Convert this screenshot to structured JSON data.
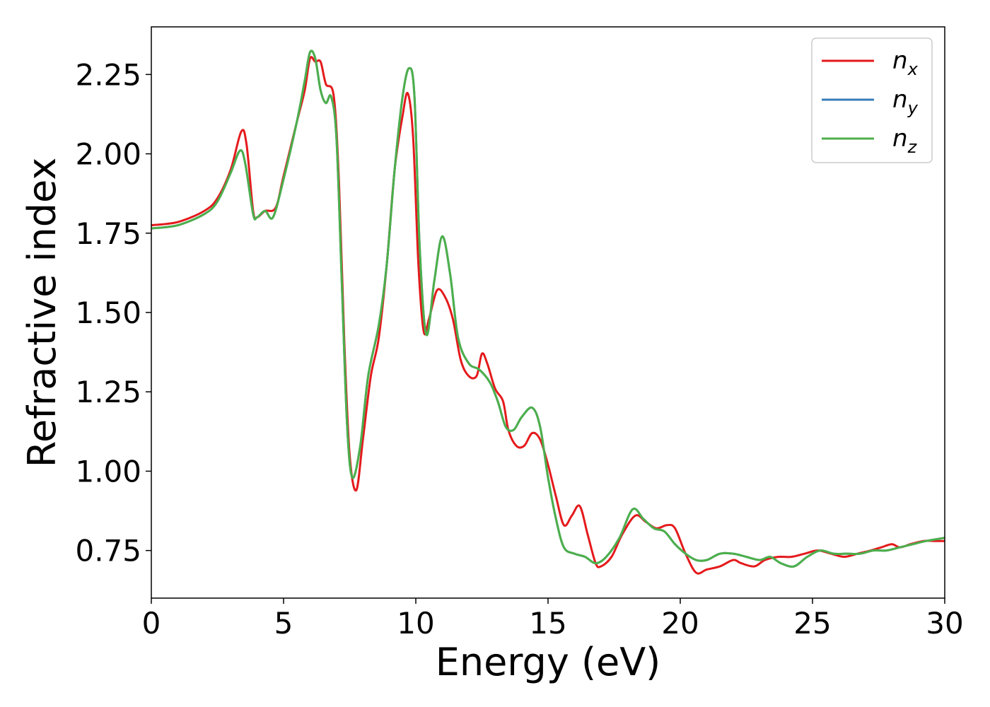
{
  "chart_data": {
    "type": "line",
    "xlabel": "Energy (eV)",
    "ylabel": "Refractive index",
    "xlim": [
      0,
      30
    ],
    "ylim": [
      0.6,
      2.4
    ],
    "xticks": [
      0,
      5,
      10,
      15,
      20,
      25,
      30
    ],
    "xtick_labels": [
      "0",
      "5",
      "10",
      "15",
      "20",
      "25",
      "30"
    ],
    "yticks": [
      0.75,
      1.0,
      1.25,
      1.5,
      1.75,
      2.0,
      2.25
    ],
    "ytick_labels": [
      "0.75",
      "1.00",
      "1.25",
      "1.50",
      "1.75",
      "2.00",
      "2.25"
    ],
    "grid": false,
    "legend_position": "top-right",
    "series": [
      {
        "name": "n_x",
        "label_base": "n",
        "label_sub": "x",
        "color": "#e41a1c",
        "points": [
          [
            0,
            1.775
          ],
          [
            1,
            1.785
          ],
          [
            2,
            1.82
          ],
          [
            2.5,
            1.86
          ],
          [
            3,
            1.95
          ],
          [
            3.4,
            2.07
          ],
          [
            3.6,
            2.03
          ],
          [
            3.85,
            1.82
          ],
          [
            4.0,
            1.8
          ],
          [
            4.3,
            1.82
          ],
          [
            4.7,
            1.83
          ],
          [
            5.0,
            1.93
          ],
          [
            5.5,
            2.1
          ],
          [
            5.8,
            2.2
          ],
          [
            6.0,
            2.3
          ],
          [
            6.2,
            2.29
          ],
          [
            6.4,
            2.29
          ],
          [
            6.6,
            2.22
          ],
          [
            6.9,
            2.18
          ],
          [
            7.1,
            1.9
          ],
          [
            7.3,
            1.4
          ],
          [
            7.5,
            1.05
          ],
          [
            7.75,
            0.94
          ],
          [
            8.0,
            1.1
          ],
          [
            8.3,
            1.3
          ],
          [
            8.6,
            1.42
          ],
          [
            8.9,
            1.65
          ],
          [
            9.2,
            1.95
          ],
          [
            9.5,
            2.12
          ],
          [
            9.7,
            2.19
          ],
          [
            9.9,
            2.05
          ],
          [
            10.1,
            1.65
          ],
          [
            10.3,
            1.44
          ],
          [
            10.5,
            1.48
          ],
          [
            10.8,
            1.57
          ],
          [
            11.1,
            1.55
          ],
          [
            11.4,
            1.48
          ],
          [
            11.7,
            1.35
          ],
          [
            12.0,
            1.3
          ],
          [
            12.3,
            1.3
          ],
          [
            12.5,
            1.37
          ],
          [
            12.7,
            1.34
          ],
          [
            13.0,
            1.26
          ],
          [
            13.3,
            1.22
          ],
          [
            13.5,
            1.13
          ],
          [
            13.8,
            1.08
          ],
          [
            14.1,
            1.08
          ],
          [
            14.4,
            1.12
          ],
          [
            14.7,
            1.1
          ],
          [
            15.0,
            1.02
          ],
          [
            15.3,
            0.92
          ],
          [
            15.6,
            0.83
          ],
          [
            15.9,
            0.86
          ],
          [
            16.2,
            0.89
          ],
          [
            16.5,
            0.8
          ],
          [
            16.8,
            0.71
          ],
          [
            17.0,
            0.7
          ],
          [
            17.4,
            0.73
          ],
          [
            17.8,
            0.8
          ],
          [
            18.3,
            0.86
          ],
          [
            18.7,
            0.84
          ],
          [
            19.1,
            0.82
          ],
          [
            19.5,
            0.83
          ],
          [
            19.8,
            0.82
          ],
          [
            20.2,
            0.74
          ],
          [
            20.6,
            0.68
          ],
          [
            21.0,
            0.69
          ],
          [
            21.5,
            0.7
          ],
          [
            22.0,
            0.72
          ],
          [
            22.3,
            0.71
          ],
          [
            22.8,
            0.7
          ],
          [
            23.2,
            0.72
          ],
          [
            23.7,
            0.73
          ],
          [
            24.2,
            0.73
          ],
          [
            24.7,
            0.74
          ],
          [
            25.2,
            0.75
          ],
          [
            25.7,
            0.74
          ],
          [
            26.2,
            0.73
          ],
          [
            26.7,
            0.74
          ],
          [
            27.2,
            0.75
          ],
          [
            27.6,
            0.76
          ],
          [
            28.0,
            0.77
          ],
          [
            28.3,
            0.76
          ],
          [
            28.7,
            0.77
          ],
          [
            29.2,
            0.78
          ],
          [
            29.6,
            0.78
          ],
          [
            30.0,
            0.78
          ]
        ]
      },
      {
        "name": "n_y",
        "label_base": "n",
        "label_sub": "y",
        "color": "#377eb8",
        "points": [
          [
            0,
            1.765
          ],
          [
            1,
            1.775
          ],
          [
            2,
            1.81
          ],
          [
            2.5,
            1.85
          ],
          [
            3,
            1.94
          ],
          [
            3.35,
            2.01
          ],
          [
            3.55,
            1.97
          ],
          [
            3.85,
            1.81
          ],
          [
            4.0,
            1.8
          ],
          [
            4.3,
            1.82
          ],
          [
            4.6,
            1.8
          ],
          [
            5.0,
            1.92
          ],
          [
            5.5,
            2.1
          ],
          [
            5.8,
            2.23
          ],
          [
            6.0,
            2.32
          ],
          [
            6.2,
            2.3
          ],
          [
            6.4,
            2.2
          ],
          [
            6.6,
            2.16
          ],
          [
            6.8,
            2.18
          ],
          [
            7.0,
            2.05
          ],
          [
            7.2,
            1.6
          ],
          [
            7.4,
            1.15
          ],
          [
            7.6,
            0.98
          ],
          [
            7.9,
            1.08
          ],
          [
            8.2,
            1.3
          ],
          [
            8.6,
            1.46
          ],
          [
            8.9,
            1.65
          ],
          [
            9.2,
            1.95
          ],
          [
            9.5,
            2.18
          ],
          [
            9.75,
            2.27
          ],
          [
            9.95,
            2.18
          ],
          [
            10.15,
            1.7
          ],
          [
            10.4,
            1.43
          ],
          [
            10.7,
            1.6
          ],
          [
            11.0,
            1.74
          ],
          [
            11.3,
            1.62
          ],
          [
            11.6,
            1.42
          ],
          [
            12.0,
            1.34
          ],
          [
            12.4,
            1.32
          ],
          [
            12.8,
            1.28
          ],
          [
            13.1,
            1.22
          ],
          [
            13.4,
            1.14
          ],
          [
            13.7,
            1.13
          ],
          [
            14.0,
            1.17
          ],
          [
            14.4,
            1.2
          ],
          [
            14.7,
            1.14
          ],
          [
            15.0,
            0.98
          ],
          [
            15.3,
            0.85
          ],
          [
            15.6,
            0.76
          ],
          [
            16.0,
            0.74
          ],
          [
            16.4,
            0.73
          ],
          [
            16.8,
            0.71
          ],
          [
            17.2,
            0.73
          ],
          [
            17.7,
            0.79
          ],
          [
            18.2,
            0.88
          ],
          [
            18.6,
            0.85
          ],
          [
            19.0,
            0.82
          ],
          [
            19.4,
            0.81
          ],
          [
            19.8,
            0.77
          ],
          [
            20.2,
            0.74
          ],
          [
            20.6,
            0.72
          ],
          [
            21.0,
            0.72
          ],
          [
            21.5,
            0.74
          ],
          [
            22.0,
            0.74
          ],
          [
            22.5,
            0.73
          ],
          [
            23.0,
            0.72
          ],
          [
            23.4,
            0.73
          ],
          [
            23.8,
            0.71
          ],
          [
            24.3,
            0.7
          ],
          [
            24.8,
            0.73
          ],
          [
            25.3,
            0.75
          ],
          [
            25.8,
            0.74
          ],
          [
            26.3,
            0.74
          ],
          [
            26.8,
            0.74
          ],
          [
            27.3,
            0.75
          ],
          [
            27.8,
            0.75
          ],
          [
            28.3,
            0.76
          ],
          [
            28.8,
            0.77
          ],
          [
            29.3,
            0.78
          ],
          [
            30.0,
            0.79
          ]
        ]
      },
      {
        "name": "n_z",
        "label_base": "n",
        "label_sub": "z",
        "color": "#4daf4a",
        "points": [
          [
            0,
            1.765
          ],
          [
            1,
            1.775
          ],
          [
            2,
            1.81
          ],
          [
            2.5,
            1.85
          ],
          [
            3,
            1.94
          ],
          [
            3.35,
            2.01
          ],
          [
            3.55,
            1.97
          ],
          [
            3.85,
            1.81
          ],
          [
            4.0,
            1.8
          ],
          [
            4.3,
            1.82
          ],
          [
            4.6,
            1.8
          ],
          [
            5.0,
            1.92
          ],
          [
            5.5,
            2.1
          ],
          [
            5.8,
            2.23
          ],
          [
            6.0,
            2.32
          ],
          [
            6.2,
            2.3
          ],
          [
            6.4,
            2.2
          ],
          [
            6.6,
            2.16
          ],
          [
            6.8,
            2.18
          ],
          [
            7.0,
            2.05
          ],
          [
            7.2,
            1.6
          ],
          [
            7.4,
            1.15
          ],
          [
            7.6,
            0.98
          ],
          [
            7.9,
            1.08
          ],
          [
            8.2,
            1.3
          ],
          [
            8.6,
            1.46
          ],
          [
            8.9,
            1.65
          ],
          [
            9.2,
            1.95
          ],
          [
            9.5,
            2.18
          ],
          [
            9.75,
            2.27
          ],
          [
            9.95,
            2.18
          ],
          [
            10.15,
            1.7
          ],
          [
            10.4,
            1.43
          ],
          [
            10.7,
            1.6
          ],
          [
            11.0,
            1.74
          ],
          [
            11.3,
            1.62
          ],
          [
            11.6,
            1.42
          ],
          [
            12.0,
            1.34
          ],
          [
            12.4,
            1.32
          ],
          [
            12.8,
            1.28
          ],
          [
            13.1,
            1.22
          ],
          [
            13.4,
            1.14
          ],
          [
            13.7,
            1.13
          ],
          [
            14.0,
            1.17
          ],
          [
            14.4,
            1.2
          ],
          [
            14.7,
            1.14
          ],
          [
            15.0,
            0.98
          ],
          [
            15.3,
            0.85
          ],
          [
            15.6,
            0.76
          ],
          [
            16.0,
            0.74
          ],
          [
            16.4,
            0.73
          ],
          [
            16.8,
            0.71
          ],
          [
            17.2,
            0.73
          ],
          [
            17.7,
            0.79
          ],
          [
            18.2,
            0.88
          ],
          [
            18.6,
            0.85
          ],
          [
            19.0,
            0.82
          ],
          [
            19.4,
            0.81
          ],
          [
            19.8,
            0.77
          ],
          [
            20.2,
            0.74
          ],
          [
            20.6,
            0.72
          ],
          [
            21.0,
            0.72
          ],
          [
            21.5,
            0.74
          ],
          [
            22.0,
            0.74
          ],
          [
            22.5,
            0.73
          ],
          [
            23.0,
            0.72
          ],
          [
            23.4,
            0.73
          ],
          [
            23.8,
            0.71
          ],
          [
            24.3,
            0.7
          ],
          [
            24.8,
            0.73
          ],
          [
            25.3,
            0.75
          ],
          [
            25.8,
            0.74
          ],
          [
            26.3,
            0.74
          ],
          [
            26.8,
            0.74
          ],
          [
            27.3,
            0.75
          ],
          [
            27.8,
            0.75
          ],
          [
            28.3,
            0.76
          ],
          [
            28.8,
            0.77
          ],
          [
            29.3,
            0.78
          ],
          [
            30.0,
            0.79
          ]
        ]
      }
    ]
  }
}
